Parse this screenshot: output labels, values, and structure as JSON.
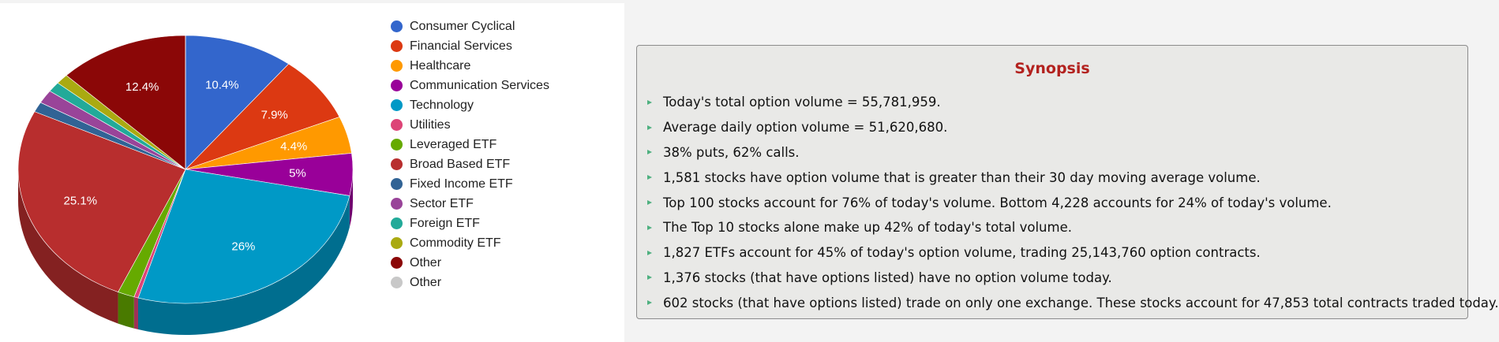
{
  "chart_data": {
    "type": "pie",
    "categories": [
      "Consumer Cyclical",
      "Financial Services",
      "Healthcare",
      "Communication Services",
      "Technology",
      "Utilities",
      "Leveraged ETF",
      "Broad Based ETF",
      "Fixed Income ETF",
      "Sector ETF",
      "Foreign ETF",
      "Commodity ETF",
      "Other",
      "Other"
    ],
    "values": [
      10.4,
      7.9,
      4.4,
      5.0,
      26.0,
      0.4,
      1.6,
      25.1,
      1.2,
      1.6,
      1.2,
      1.2,
      12.4,
      0.01
    ],
    "colors": [
      "#3366cc",
      "#dc3912",
      "#ff9900",
      "#990099",
      "#0099c6",
      "#dd4477",
      "#66aa00",
      "#b82e2e",
      "#316395",
      "#994499",
      "#22aa99",
      "#aaaa11",
      "#8b0707",
      "#c8c8c8"
    ],
    "labels": [
      "10.4%",
      "7.9%",
      "4.4%",
      "5%",
      "26%",
      "",
      "",
      "25.1%",
      "",
      "",
      "",
      "",
      "12.4%",
      ""
    ],
    "legend_position": "right",
    "style": "3d"
  },
  "synopsis": {
    "title": "Synopsis",
    "items": [
      "Today's total option volume = 55,781,959.",
      "Average daily option volume = 51,620,680.",
      "38% puts, 62% calls.",
      "1,581 stocks have option volume that is greater than their 30 day moving average volume.",
      "Top 100 stocks account for 76% of today's volume. Bottom 4,228 accounts for 24% of today's volume.",
      "The Top 10 stocks alone make up 42% of today's total volume.",
      "1,827 ETFs account for 45% of today's option volume, trading 25,143,760 option contracts.",
      "1,376 stocks (that have options listed) have no option volume today.",
      "602 stocks (that have options listed) trade on only one exchange. These stocks account for 47,853 total contracts traded today."
    ],
    "bullet_color": "#4eb07f",
    "title_color": "#b3221f"
  }
}
